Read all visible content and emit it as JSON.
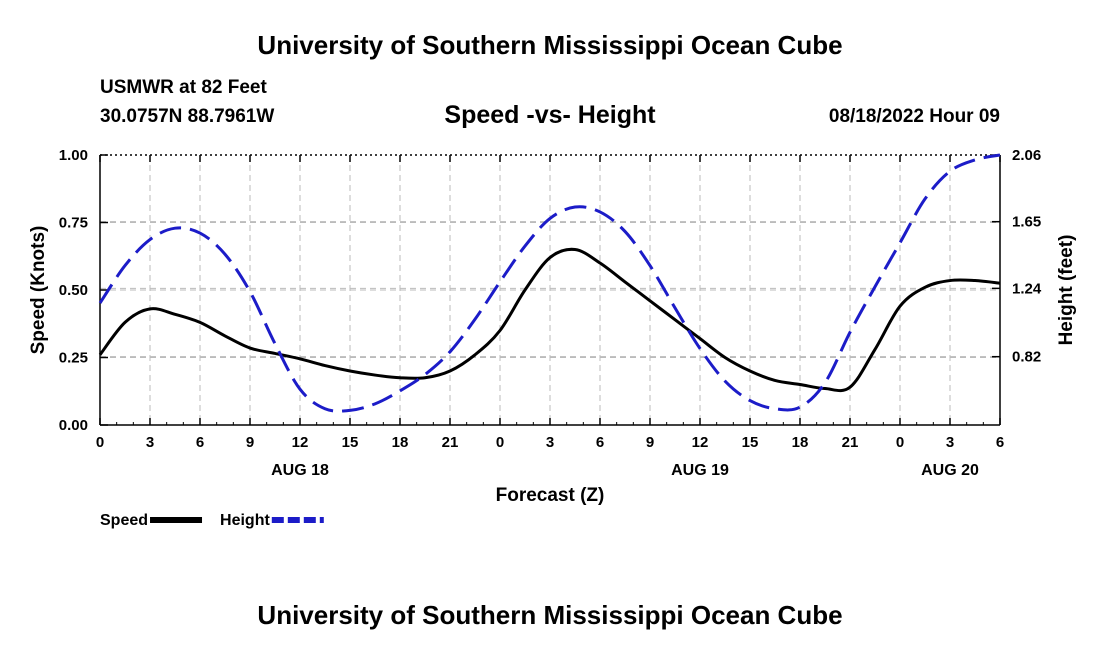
{
  "header": {
    "title": "University of Southern Mississippi Ocean Cube",
    "station": "USMWR at 82 Feet",
    "coordinates": "30.0757N  88.7961W",
    "chart_title": "Speed -vs- Height",
    "date": "08/18/2022 Hour 09",
    "bottom_title": "University of Southern Mississippi Ocean Cube"
  },
  "colors": {
    "speed": "#000000",
    "height": "#1c1cc8",
    "grid": "#bbbbbb"
  },
  "chart_data": {
    "type": "line",
    "title": "Speed -vs- Height",
    "xlabel": "Forecast (Z)",
    "ylabel": "Speed (Knots)",
    "y2label": "Height (feet)",
    "x_range": [
      0,
      54
    ],
    "ylim": [
      0,
      1.0
    ],
    "y2lim": [
      0.4,
      2.06
    ],
    "x_ticks": [
      0,
      3,
      6,
      9,
      12,
      15,
      18,
      21,
      24,
      27,
      30,
      33,
      36,
      39,
      42,
      45,
      48,
      51,
      54
    ],
    "x_tick_labels": [
      "0",
      "3",
      "6",
      "9",
      "12",
      "15",
      "18",
      "21",
      "0",
      "3",
      "6",
      "9",
      "12",
      "15",
      "18",
      "21",
      "0",
      "3",
      "6"
    ],
    "y_ticks": [
      "0.00",
      "0.25",
      "0.50",
      "0.75",
      "1.00"
    ],
    "y2_ticks": [
      "0.82",
      "1.24",
      "1.65",
      "2.06"
    ],
    "date_labels": [
      {
        "x": 12,
        "label": "AUG 18"
      },
      {
        "x": 36,
        "label": "AUG 19"
      },
      {
        "x": 51,
        "label": "AUG 20"
      }
    ],
    "grid": true,
    "series": [
      {
        "name": "Speed",
        "axis": "left",
        "style": "solid",
        "x": [
          0,
          1.5,
          3,
          4.5,
          6,
          7.5,
          9,
          10.5,
          12,
          13.5,
          15,
          16.5,
          18,
          19.5,
          21,
          22.5,
          24,
          25.5,
          27,
          28.5,
          30,
          31.5,
          33,
          34.5,
          36,
          37.5,
          39,
          40.5,
          42,
          43.5,
          45,
          46.5,
          48,
          49.5,
          51,
          52.5,
          54
        ],
        "values": [
          0.26,
          0.38,
          0.43,
          0.41,
          0.38,
          0.33,
          0.285,
          0.265,
          0.245,
          0.22,
          0.2,
          0.185,
          0.175,
          0.175,
          0.2,
          0.26,
          0.35,
          0.5,
          0.62,
          0.65,
          0.6,
          0.53,
          0.46,
          0.39,
          0.32,
          0.25,
          0.2,
          0.165,
          0.15,
          0.135,
          0.14,
          0.28,
          0.44,
          0.51,
          0.535,
          0.535,
          0.525
        ]
      },
      {
        "name": "Height",
        "axis": "right",
        "style": "dashed",
        "x": [
          0,
          1.5,
          3,
          4.5,
          6,
          7.5,
          9,
          10.5,
          12,
          13.5,
          15,
          16.5,
          18,
          19.5,
          21,
          22.5,
          24,
          25.5,
          27,
          28.5,
          30,
          31.5,
          33,
          34.5,
          36,
          37.5,
          39,
          40.5,
          42,
          43.5,
          45,
          46.5,
          48,
          49.5,
          51,
          52.5,
          54
        ],
        "values": [
          1.15,
          1.38,
          1.54,
          1.61,
          1.58,
          1.45,
          1.22,
          0.9,
          0.62,
          0.5,
          0.49,
          0.53,
          0.61,
          0.71,
          0.85,
          1.05,
          1.28,
          1.5,
          1.67,
          1.74,
          1.71,
          1.59,
          1.38,
          1.12,
          0.87,
          0.67,
          0.55,
          0.5,
          0.51,
          0.66,
          0.97,
          1.25,
          1.52,
          1.79,
          1.96,
          2.03,
          2.06
        ]
      }
    ],
    "legend": [
      {
        "label": "Speed",
        "style": "solid"
      },
      {
        "label": "Height",
        "style": "dashed"
      }
    ],
    "legend_position": "bottom-left"
  }
}
